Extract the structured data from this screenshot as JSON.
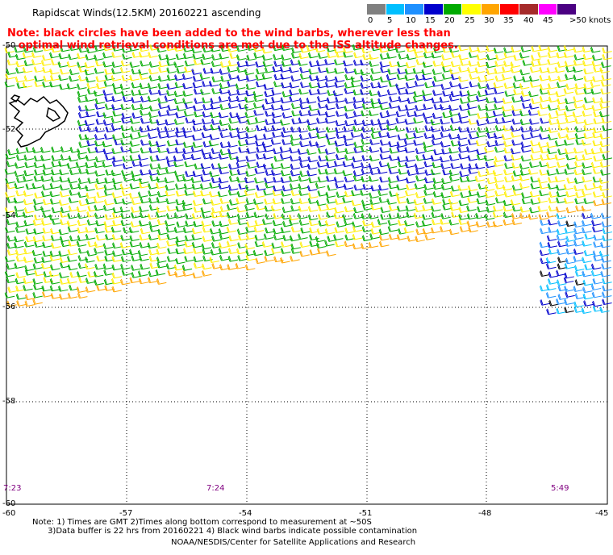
{
  "title": "Rapidscat Winds(12.5KM) 20160221 ascending",
  "note_line1": "Note: black circles have been added to the wind barbs, wherever less than",
  "note_line2": "   optimal wind retrieval conditions are met due to the ISS altitude changes.",
  "legend": {
    "ticks": [
      "0",
      "5",
      "10",
      "15",
      "20",
      "25",
      "30",
      "35",
      "40",
      "45",
      ">50"
    ],
    "unit": "knots",
    "colors": [
      "#808080",
      "#00bfff",
      "#1e90ff",
      "#0000cd",
      "#00aa00",
      "#ffff00",
      "#ffa500",
      "#ff0000",
      "#a52a2a",
      "#ff00ff",
      "#4b0082"
    ]
  },
  "axes": {
    "y_labels": [
      "-50",
      "-52",
      "-54",
      "-56",
      "-58",
      "-60"
    ],
    "x_labels": [
      "-60",
      "-57",
      "-54",
      "-51",
      "-48",
      "-45"
    ]
  },
  "pass_times": [
    "7:23",
    "7:24",
    "5:49"
  ],
  "footnote_line1": "Note: 1) Times are GMT 2)Times along bottom correspond to measurement at ~50S",
  "footnote_line2": "      3)Data buffer is 22 hrs from 20160221 4) Black wind barbs indicate possible contamination",
  "credit": "NOAA/NESDIS/Center for Satellite Applications and Research"
}
